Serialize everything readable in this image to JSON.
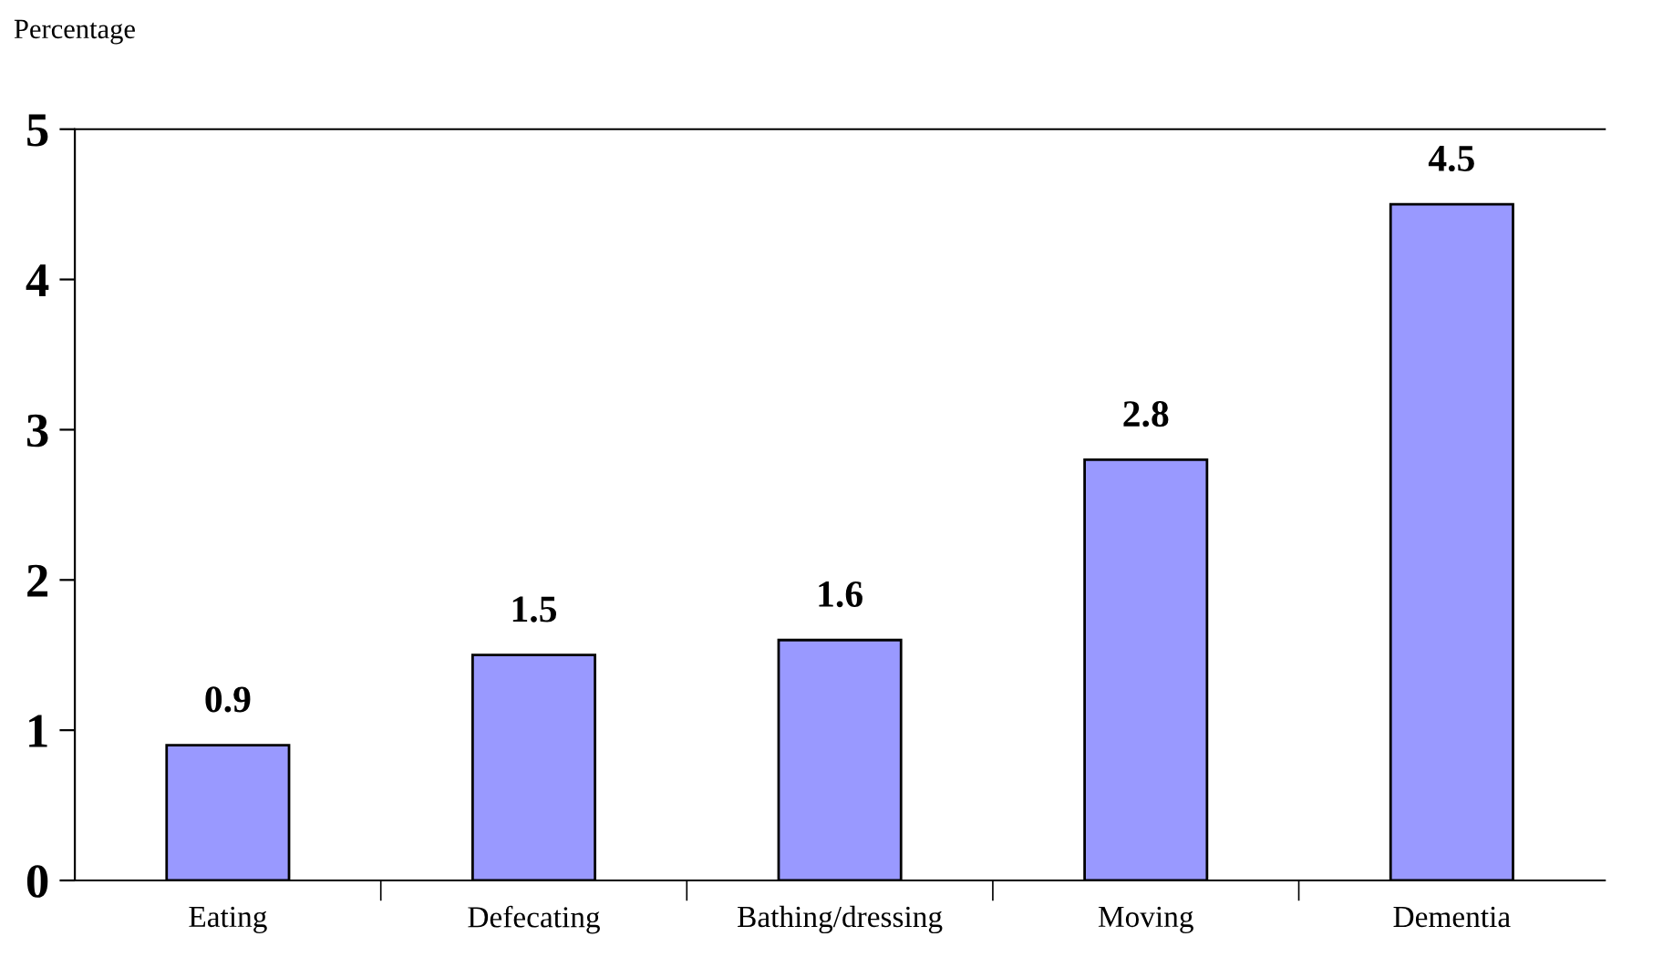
{
  "chart_data": {
    "type": "bar",
    "ylabel": "Percentage",
    "categories": [
      "Eating",
      "Defecating",
      "Bathing/dressing",
      "Moving",
      "Dementia"
    ],
    "values": [
      0.9,
      1.5,
      1.6,
      2.8,
      4.5
    ],
    "color": "#9999ff",
    "ylim": [
      0,
      5
    ],
    "yticks": [
      0,
      1,
      2,
      3,
      4,
      5
    ],
    "grid": false,
    "data_labels": true
  }
}
